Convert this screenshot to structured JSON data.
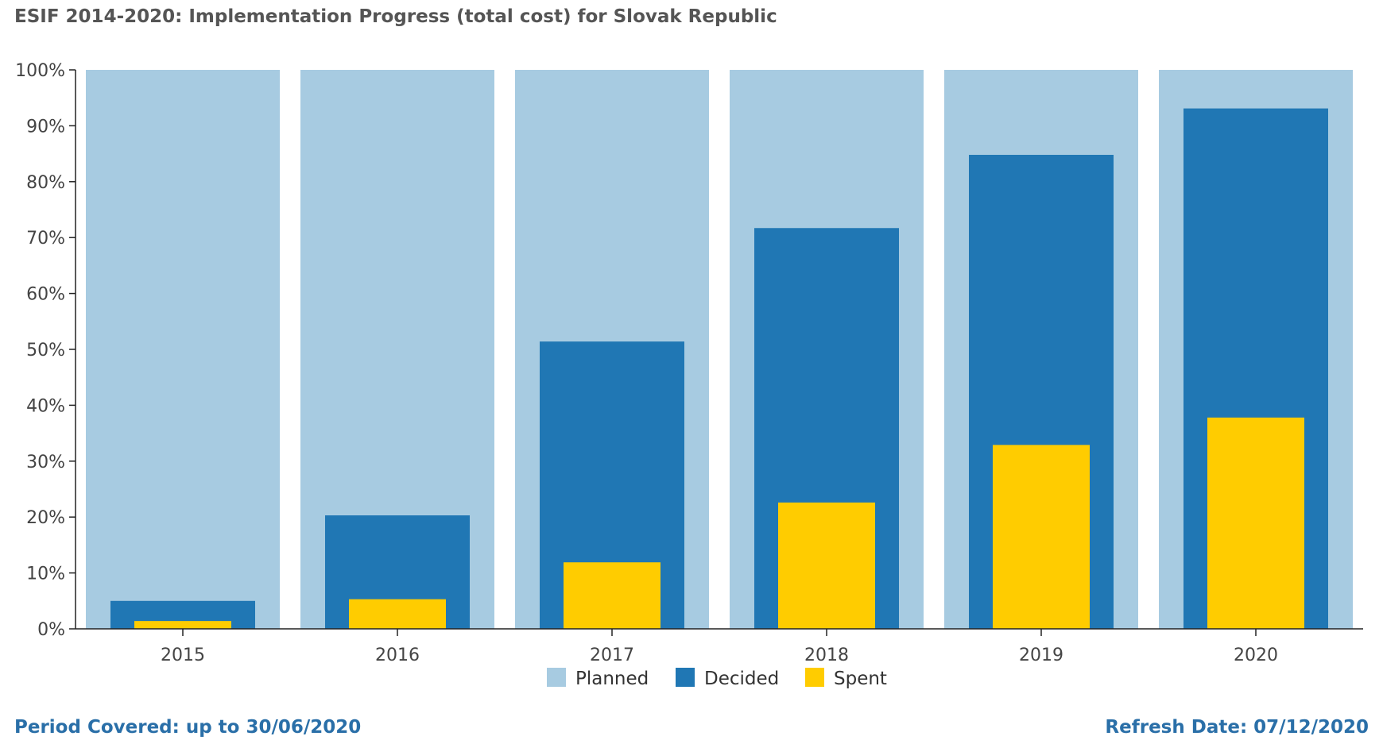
{
  "chart_data": {
    "type": "bar",
    "title": "ESIF 2014-2020: Implementation Progress (total cost) for Slovak Republic",
    "categories": [
      "2015",
      "2016",
      "2017",
      "2018",
      "2019",
      "2020"
    ],
    "series": [
      {
        "name": "Planned",
        "values": [
          100,
          100,
          100,
          100,
          100,
          100
        ]
      },
      {
        "name": "Decided",
        "values": [
          5,
          20.3,
          51.4,
          71.7,
          84.8,
          93.1
        ]
      },
      {
        "name": "Spent",
        "values": [
          1.4,
          5.3,
          11.9,
          22.6,
          32.9,
          37.8
        ]
      }
    ],
    "yticks": [
      "0%",
      "10%",
      "20%",
      "30%",
      "40%",
      "50%",
      "60%",
      "70%",
      "80%",
      "90%",
      "100%"
    ],
    "ylim": [
      0,
      100
    ],
    "xlabel": "",
    "ylabel": "",
    "legend_position": "bottom-center",
    "colors": {
      "Planned": "#a7cbe1",
      "Decided": "#2077b4",
      "Spent": "#ffcc00",
      "axis": "#222222"
    }
  },
  "footer": {
    "period": "Period Covered: up to 30/06/2020",
    "refresh": "Refresh Date: 07/12/2020"
  }
}
